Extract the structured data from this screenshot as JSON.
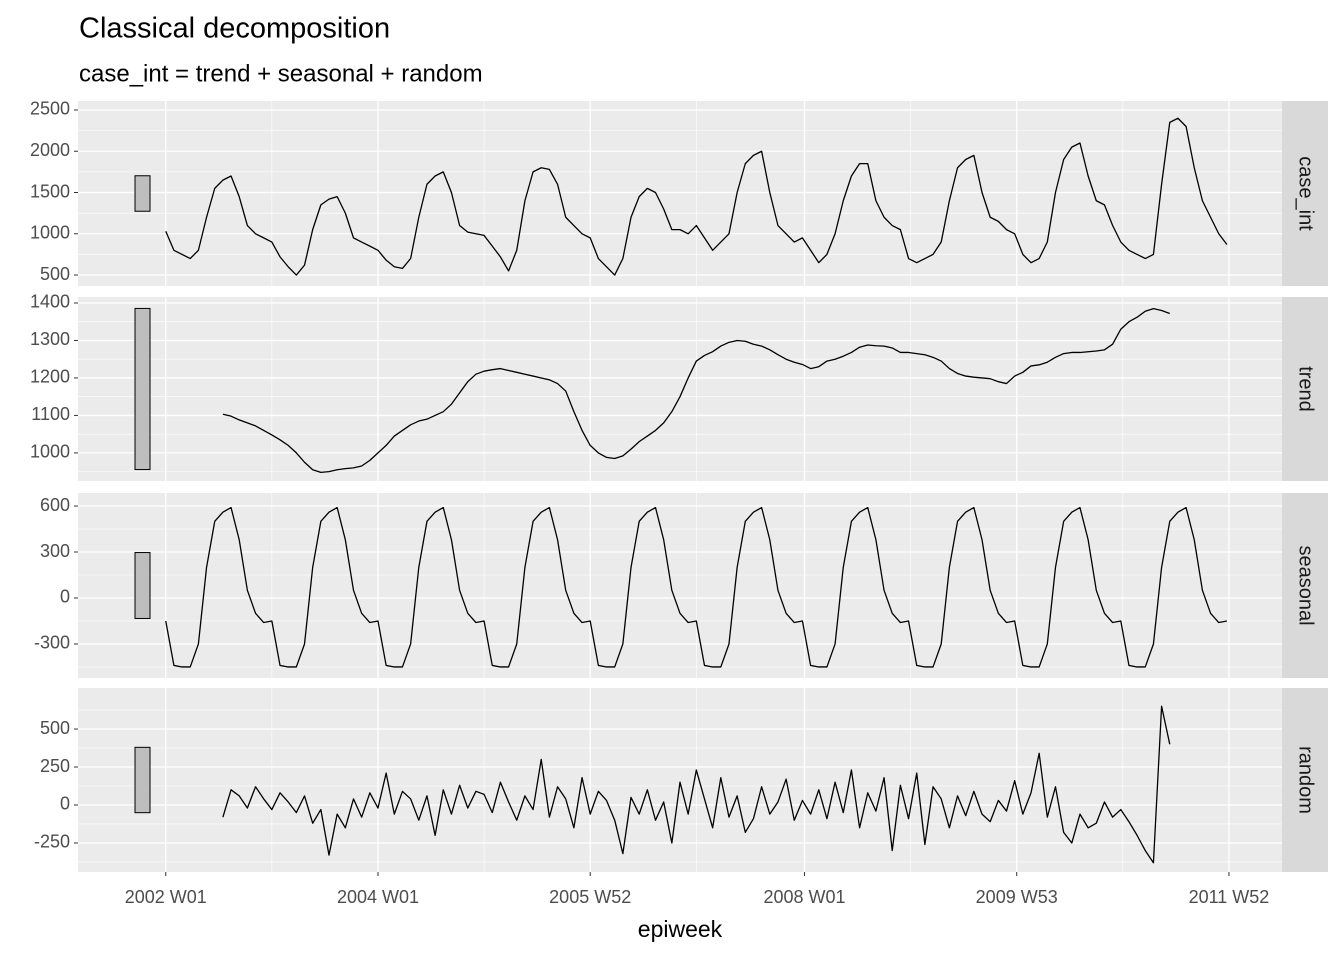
{
  "chart_data": {
    "type": "line",
    "title": "Classical decomposition",
    "subtitle": "case_int = trend + seasonal + random",
    "xlabel": "epiweek",
    "color": "#000000",
    "grid": true,
    "range_bar": 430,
    "x": [
      0,
      4,
      8,
      12,
      16,
      20,
      24,
      28,
      32,
      36,
      40,
      44,
      48,
      52,
      56,
      60,
      64,
      68,
      72,
      76,
      80,
      84,
      88,
      92,
      96,
      100,
      104,
      108,
      112,
      116,
      120,
      124,
      128,
      132,
      136,
      140,
      144,
      148,
      152,
      156,
      160,
      164,
      168,
      172,
      176,
      180,
      184,
      188,
      192,
      196,
      200,
      204,
      208,
      212,
      216,
      220,
      224,
      228,
      232,
      236,
      240,
      244,
      248,
      252,
      256,
      260,
      264,
      268,
      272,
      276,
      280,
      284,
      288,
      292,
      296,
      300,
      304,
      308,
      312,
      316,
      320,
      324,
      328,
      332,
      336,
      340,
      344,
      348,
      352,
      356,
      360,
      364,
      368,
      372,
      376,
      380,
      384,
      388,
      392,
      396,
      400,
      404,
      408,
      412,
      416,
      420,
      424,
      428,
      432,
      436,
      440,
      444,
      448,
      452,
      456,
      460,
      464,
      468,
      472,
      476,
      480,
      484,
      488,
      492,
      496,
      500,
      504,
      508,
      512,
      516,
      520
    ],
    "xlim": [
      -43,
      547
    ],
    "xticks": [
      {
        "value": 0,
        "label": "2002 W01"
      },
      {
        "value": 104,
        "label": "2004 W01"
      },
      {
        "value": 208,
        "label": "2005 W52"
      },
      {
        "value": 313,
        "label": "2008 W01"
      },
      {
        "value": 417,
        "label": "2009 W53"
      },
      {
        "value": 521,
        "label": "2011 W52"
      }
    ],
    "series": [
      {
        "name": "case_int",
        "ylim": [
          367,
          2609
        ],
        "yticks": [
          500,
          1000,
          1500,
          2000,
          2500
        ],
        "values": [
          1030,
          800,
          750,
          700,
          800,
          1200,
          1550,
          1650,
          1700,
          1450,
          1100,
          1000,
          950,
          900,
          720,
          600,
          500,
          620,
          1050,
          1350,
          1420,
          1450,
          1250,
          950,
          900,
          850,
          800,
          680,
          600,
          580,
          700,
          1200,
          1600,
          1700,
          1750,
          1500,
          1100,
          1020,
          1000,
          980,
          850,
          720,
          550,
          800,
          1400,
          1750,
          1800,
          1780,
          1600,
          1200,
          1100,
          1000,
          950,
          700,
          600,
          500,
          700,
          1200,
          1450,
          1550,
          1500,
          1300,
          1050,
          1050,
          1000,
          1100,
          950,
          800,
          900,
          1000,
          1500,
          1850,
          1950,
          2000,
          1500,
          1100,
          1000,
          900,
          950,
          800,
          650,
          750,
          1000,
          1400,
          1700,
          1850,
          1850,
          1400,
          1200,
          1100,
          1050,
          700,
          650,
          700,
          750,
          900,
          1400,
          1800,
          1900,
          1950,
          1500,
          1200,
          1150,
          1050,
          1000,
          750,
          650,
          700,
          900,
          1500,
          1900,
          2050,
          2100,
          1700,
          1400,
          1350,
          1100,
          900,
          800,
          750,
          700,
          750,
          1600,
          2350,
          2400,
          2300,
          1800,
          1400,
          1200,
          1000,
          870
        ]
      },
      {
        "name": "trend",
        "ylim": [
          925,
          1416
        ],
        "yticks": [
          1000,
          1100,
          1200,
          1300,
          1400
        ],
        "values": [
          null,
          null,
          null,
          null,
          null,
          null,
          null,
          1103,
          1098,
          1088,
          1080,
          1072,
          1060,
          1048,
          1035,
          1020,
          1000,
          975,
          955,
          948,
          950,
          955,
          958,
          960,
          965,
          980,
          1000,
          1020,
          1045,
          1060,
          1075,
          1085,
          1090,
          1100,
          1110,
          1130,
          1160,
          1190,
          1210,
          1218,
          1222,
          1225,
          1220,
          1215,
          1210,
          1205,
          1200,
          1195,
          1185,
          1165,
          1110,
          1060,
          1020,
          1000,
          988,
          985,
          992,
          1010,
          1030,
          1045,
          1060,
          1080,
          1110,
          1150,
          1200,
          1245,
          1260,
          1270,
          1285,
          1295,
          1300,
          1298,
          1290,
          1285,
          1275,
          1262,
          1250,
          1242,
          1236,
          1225,
          1230,
          1245,
          1250,
          1258,
          1268,
          1282,
          1288,
          1286,
          1285,
          1280,
          1268,
          1268,
          1265,
          1262,
          1255,
          1245,
          1225,
          1212,
          1205,
          1202,
          1200,
          1198,
          1190,
          1185,
          1205,
          1215,
          1232,
          1235,
          1242,
          1255,
          1265,
          1268,
          1268,
          1270,
          1272,
          1275,
          1290,
          1330,
          1350,
          1362,
          1378,
          1385,
          1380,
          1372,
          null,
          null,
          null,
          null,
          null,
          null,
          null
        ]
      },
      {
        "name": "seasonal",
        "ylim": [
          -522,
          685
        ],
        "yticks": [
          600,
          300,
          0,
          -300
        ],
        "values": [
          -150,
          -440,
          -450,
          -450,
          -300,
          200,
          500,
          560,
          590,
          380,
          50,
          -100,
          -160,
          -150,
          -440,
          -450,
          -450,
          -300,
          200,
          500,
          560,
          590,
          380,
          50,
          -100,
          -160,
          -150,
          -440,
          -450,
          -450,
          -300,
          200,
          500,
          560,
          590,
          380,
          50,
          -100,
          -160,
          -150,
          -440,
          -450,
          -450,
          -300,
          200,
          500,
          560,
          590,
          380,
          50,
          -100,
          -160,
          -150,
          -440,
          -450,
          -450,
          -300,
          200,
          500,
          560,
          590,
          380,
          50,
          -100,
          -160,
          -150,
          -440,
          -450,
          -450,
          -300,
          200,
          500,
          560,
          590,
          380,
          50,
          -100,
          -160,
          -150,
          -440,
          -450,
          -450,
          -300,
          200,
          500,
          560,
          590,
          380,
          50,
          -100,
          -160,
          -150,
          -440,
          -450,
          -450,
          -300,
          200,
          500,
          560,
          590,
          380,
          50,
          -100,
          -160,
          -150,
          -440,
          -450,
          -450,
          -300,
          200,
          500,
          560,
          590,
          380,
          50,
          -100,
          -160,
          -150,
          -440,
          -450,
          -450,
          -300,
          200,
          500,
          560,
          590,
          380,
          50,
          -100,
          -160,
          -150
        ]
      },
      {
        "name": "random",
        "ylim": [
          -441,
          770
        ],
        "yticks": [
          500,
          250,
          0,
          -250
        ],
        "values": [
          null,
          null,
          null,
          null,
          null,
          null,
          null,
          -80,
          100,
          60,
          -20,
          120,
          40,
          -30,
          80,
          20,
          -50,
          60,
          -120,
          -30,
          -330,
          -60,
          -150,
          40,
          -80,
          80,
          -20,
          210,
          -60,
          90,
          40,
          -100,
          60,
          -200,
          100,
          -60,
          130,
          -20,
          90,
          70,
          -50,
          150,
          20,
          -100,
          60,
          -30,
          300,
          -80,
          120,
          40,
          -150,
          180,
          -60,
          90,
          30,
          -100,
          -320,
          50,
          -60,
          100,
          -100,
          20,
          -250,
          150,
          -60,
          230,
          40,
          -150,
          180,
          -80,
          60,
          -180,
          -90,
          120,
          -60,
          20,
          170,
          -100,
          30,
          -60,
          100,
          -90,
          150,
          -50,
          230,
          -150,
          80,
          -40,
          180,
          -300,
          130,
          -90,
          210,
          -260,
          120,
          40,
          -150,
          60,
          -70,
          90,
          -60,
          -110,
          30,
          -40,
          160,
          -60,
          80,
          340,
          -80,
          120,
          -180,
          -250,
          -60,
          -150,
          -120,
          20,
          -80,
          -30,
          -110,
          -200,
          -300,
          -380,
          650,
          400,
          null,
          null,
          null,
          null,
          null,
          null,
          null
        ]
      }
    ]
  }
}
